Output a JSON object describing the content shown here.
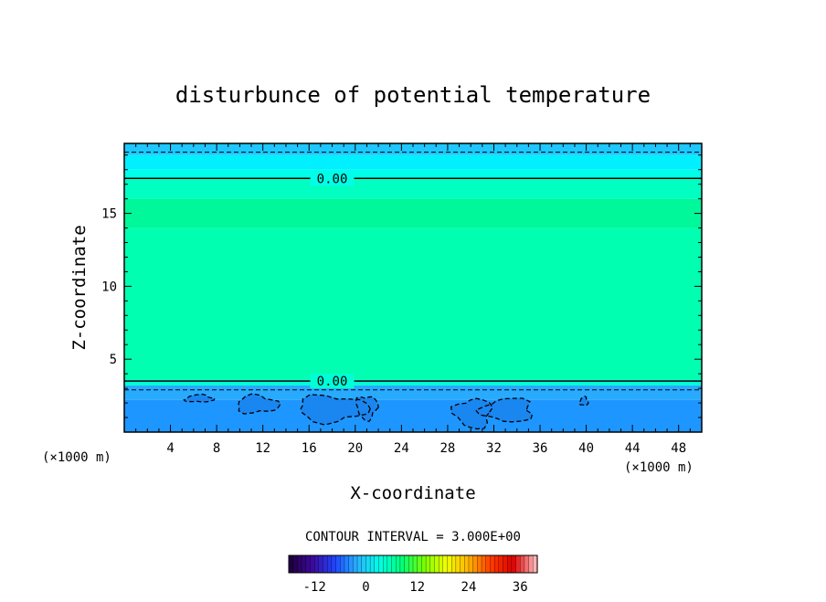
{
  "chart_data": {
    "type": "heatmap",
    "title": "disturbunce of potential temperature",
    "xlabel": "X-coordinate",
    "ylabel": "Z-coordinate",
    "x_unit": "(×1000 m)",
    "y_unit": "(×1000 m)",
    "xlim": [
      0,
      50
    ],
    "ylim": [
      0,
      19.8
    ],
    "x_ticks": [
      4,
      8,
      12,
      16,
      20,
      24,
      28,
      32,
      36,
      40,
      44,
      48
    ],
    "y_ticks": [
      5,
      10,
      15
    ],
    "layers": [
      {
        "z_from": 0.0,
        "z_to": 2.2,
        "value": -6,
        "color": "#1e96ff"
      },
      {
        "z_from": 2.2,
        "z_to": 3.2,
        "value": -3,
        "color": "#28aaff"
      },
      {
        "z_from": 3.2,
        "z_to": 3.6,
        "value": -1,
        "color": "#00ffd6"
      },
      {
        "z_from": 3.6,
        "z_to": 14.0,
        "value": 1,
        "color": "#00ffb0"
      },
      {
        "z_from": 14.0,
        "z_to": 16.0,
        "value": 2,
        "color": "#00f89a"
      },
      {
        "z_from": 16.0,
        "z_to": 17.4,
        "value": 1,
        "color": "#00ffc0"
      },
      {
        "z_from": 17.4,
        "z_to": 18.0,
        "value": -1,
        "color": "#00ffe8"
      },
      {
        "z_from": 18.0,
        "z_to": 19.0,
        "value": -2,
        "color": "#00f0ff"
      },
      {
        "z_from": 19.0,
        "z_to": 19.8,
        "value": -4,
        "color": "#1ec8ff"
      }
    ],
    "contours": [
      {
        "level": 0.0,
        "style": "solid",
        "z": 17.4,
        "label": "0.00",
        "label_x": 18
      },
      {
        "level": 0.0,
        "style": "solid",
        "z": 3.5,
        "label": "0.00",
        "label_x": 18
      },
      {
        "level": -3.0,
        "style": "dashed",
        "z": 19.2
      },
      {
        "level": -3.0,
        "style": "dashed",
        "z": 2.9
      }
    ],
    "negative_patches": [
      {
        "x": 6.5,
        "z": 2.3,
        "rx": 1.2,
        "rz": 0.25
      },
      {
        "x": 11.5,
        "z": 1.9,
        "rx": 1.8,
        "rz": 0.6
      },
      {
        "x": 18.0,
        "z": 1.6,
        "rx": 3.0,
        "rz": 0.9
      },
      {
        "x": 21.0,
        "z": 1.7,
        "rx": 0.9,
        "rz": 0.8
      },
      {
        "x": 30.2,
        "z": 1.3,
        "rx": 1.6,
        "rz": 1.0
      },
      {
        "x": 33.2,
        "z": 1.5,
        "rx": 2.2,
        "rz": 0.8
      },
      {
        "x": 39.8,
        "z": 2.1,
        "rx": 0.35,
        "rz": 0.3
      }
    ],
    "contour_interval_text": "CONTOUR INTERVAL = 3.000E+00",
    "colorbar": {
      "min": -18,
      "max": 40,
      "ticks": [
        -12,
        0,
        12,
        24,
        36
      ],
      "stops": [
        "#200040",
        "#3c0aa0",
        "#1e46ff",
        "#28b4ff",
        "#00ffe6",
        "#00ff78",
        "#78ff00",
        "#f0ff00",
        "#ffb400",
        "#ff3c00",
        "#dc0000",
        "#ffb4b4"
      ]
    }
  }
}
